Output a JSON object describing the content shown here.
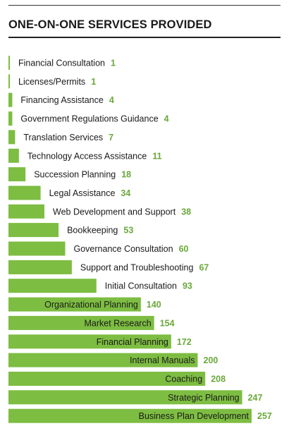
{
  "colors": {
    "bar": "#7dbd42",
    "value_text": "#6aa83a",
    "label_text": "#1a1a1a"
  },
  "title": "ONE-ON-ONE SERVICES PROVIDED",
  "chart_data": {
    "type": "bar",
    "orientation": "horizontal",
    "title": "ONE-ON-ONE SERVICES PROVIDED",
    "categories": [
      "Financial Consultation",
      "Licenses/Permits",
      "Financing Assistance",
      "Government Regulations Guidance",
      "Translation Services",
      "Technology Access Assistance",
      "Succession Planning",
      "Legal Assistance",
      "Web Development and Support",
      "Bookkeeping",
      "Governance Consultation",
      "Support and Troubleshooting",
      "Initial Consultation",
      "Organizational Planning",
      "Market Research",
      "Financial Planning",
      "Internal Manuals",
      "Coaching",
      "Strategic Planning",
      "Business Plan Development"
    ],
    "values": [
      1,
      1,
      4,
      4,
      7,
      11,
      18,
      34,
      38,
      53,
      60,
      67,
      93,
      140,
      154,
      172,
      200,
      208,
      247,
      257
    ],
    "xlim": [
      0,
      257
    ],
    "grid": false,
    "legend": "none",
    "data_labels": true
  }
}
